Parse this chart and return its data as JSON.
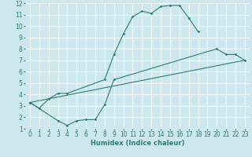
{
  "bg_color": "#cce8ee",
  "line_color": "#2e7d6e",
  "grid_color": "#ffffff",
  "xlabel": "Humidex (Indice chaleur)",
  "xlim": [
    -0.5,
    23.5
  ],
  "ylim": [
    1,
    12
  ],
  "xticks": [
    0,
    1,
    2,
    3,
    4,
    5,
    6,
    7,
    8,
    9,
    10,
    11,
    12,
    13,
    14,
    15,
    16,
    17,
    18,
    19,
    20,
    21,
    22,
    23
  ],
  "yticks": [
    1,
    2,
    3,
    4,
    5,
    6,
    7,
    8,
    9,
    10,
    11,
    12
  ],
  "line1_x": [
    0,
    1,
    2,
    3,
    4,
    8,
    9,
    10,
    11,
    12,
    13,
    14,
    15,
    16,
    17,
    18
  ],
  "line1_y": [
    3.3,
    2.8,
    3.6,
    4.1,
    4.1,
    5.3,
    7.5,
    9.3,
    10.8,
    11.3,
    11.1,
    11.7,
    11.8,
    11.8,
    10.7,
    9.5
  ],
  "line2_x": [
    0,
    3,
    4,
    5,
    6,
    7,
    8,
    9,
    20,
    21,
    22,
    23
  ],
  "line2_y": [
    3.3,
    1.7,
    1.3,
    1.7,
    1.8,
    1.8,
    3.1,
    5.3,
    8.0,
    7.5,
    7.5,
    7.0
  ],
  "line3_x": [
    0,
    23
  ],
  "line3_y": [
    3.3,
    7.0
  ],
  "figsize": [
    3.2,
    2.0
  ],
  "dpi": 100,
  "tick_fontsize": 5.5,
  "label_fontsize": 6.0
}
